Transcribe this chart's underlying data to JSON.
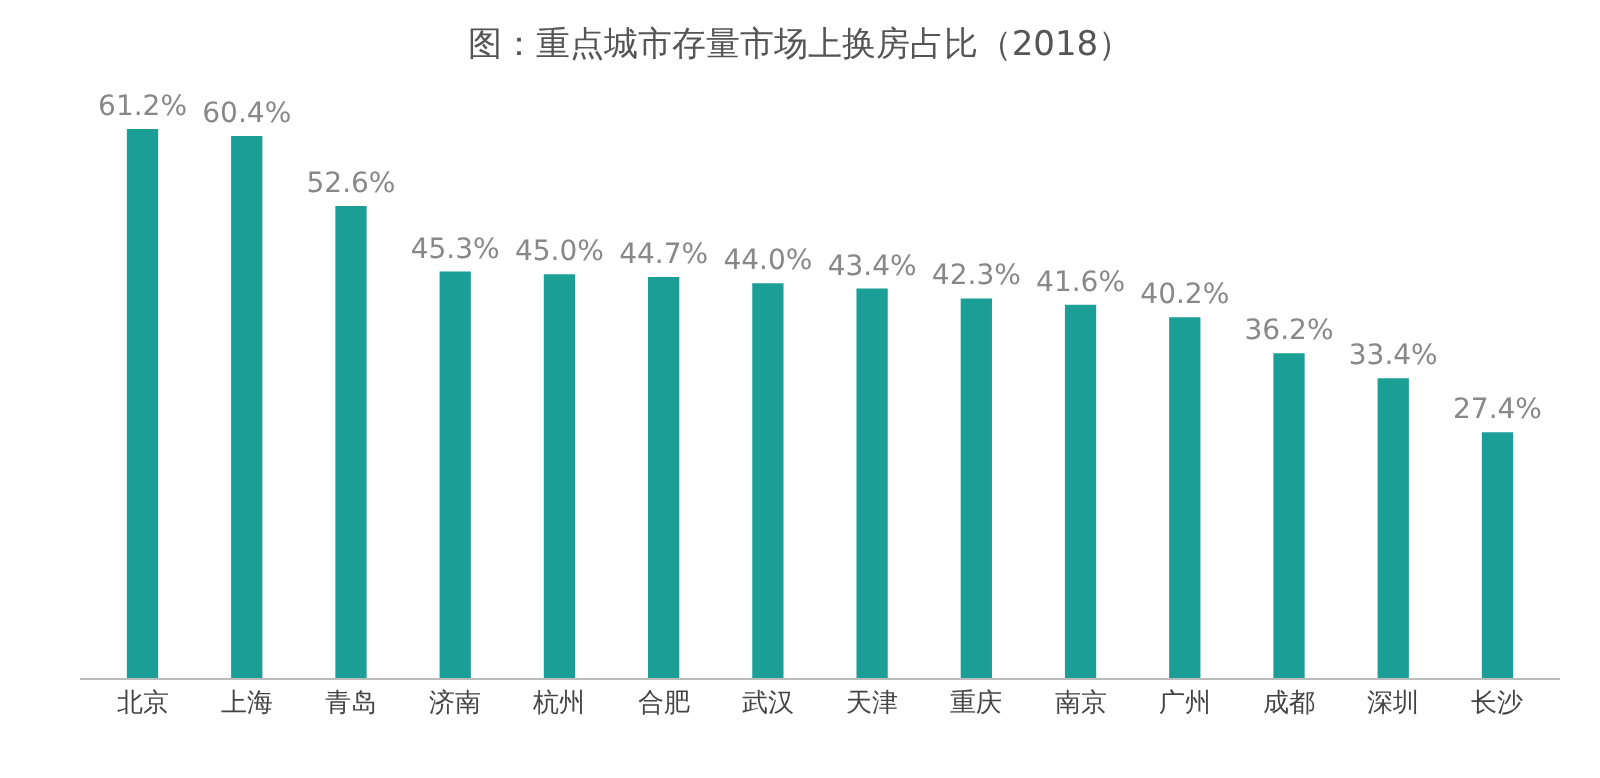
{
  "chart_data": {
    "type": "bar",
    "title": "图：重点城市存量市场上换房占比（2018）",
    "categories": [
      "北京",
      "上海",
      "青岛",
      "济南",
      "杭州",
      "合肥",
      "武汉",
      "天津",
      "重庆",
      "南京",
      "广州",
      "成都",
      "深圳",
      "长沙"
    ],
    "values": [
      61.2,
      60.4,
      52.6,
      45.3,
      45.0,
      44.7,
      44.0,
      43.4,
      42.3,
      41.6,
      40.2,
      36.2,
      33.4,
      27.4
    ],
    "value_labels": [
      "61.2%",
      "60.4%",
      "52.6%",
      "45.3%",
      "45.0%",
      "44.7%",
      "44.0%",
      "43.4%",
      "42.3%",
      "41.6%",
      "40.2%",
      "36.2%",
      "33.4%",
      "27.4%"
    ],
    "color": "#1a9e96",
    "grid": false,
    "legend": false
  }
}
